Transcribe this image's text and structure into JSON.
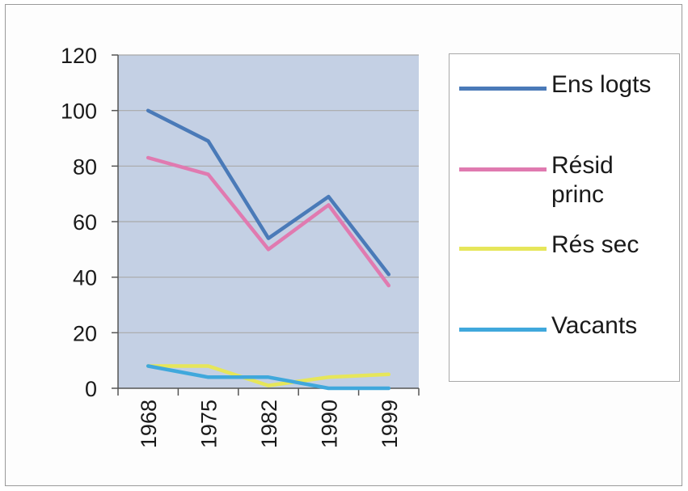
{
  "chart_data": {
    "type": "line",
    "title": "",
    "xlabel": "",
    "ylabel": "",
    "categories": [
      "1968",
      "1975",
      "1982",
      "1990",
      "1999"
    ],
    "y_ticks": [
      "0",
      "20",
      "40",
      "60",
      "80",
      "100",
      "120"
    ],
    "ylim": [
      0,
      120
    ],
    "grid": true,
    "legend_position": "right",
    "plot_background": "#c4d0e4",
    "series": [
      {
        "name": "Ens logts",
        "color": "#4a7ab8",
        "values": [
          100,
          89,
          54,
          69,
          41
        ]
      },
      {
        "name": "Résid princ",
        "color": "#e07ab0",
        "values": [
          83,
          77,
          50,
          66,
          37
        ]
      },
      {
        "name": "Rés sec",
        "color": "#e6e65a",
        "values": [
          8,
          8,
          1,
          4,
          5
        ]
      },
      {
        "name": "Vacants",
        "color": "#40a8dc",
        "values": [
          8,
          4,
          4,
          0,
          0
        ]
      }
    ]
  }
}
